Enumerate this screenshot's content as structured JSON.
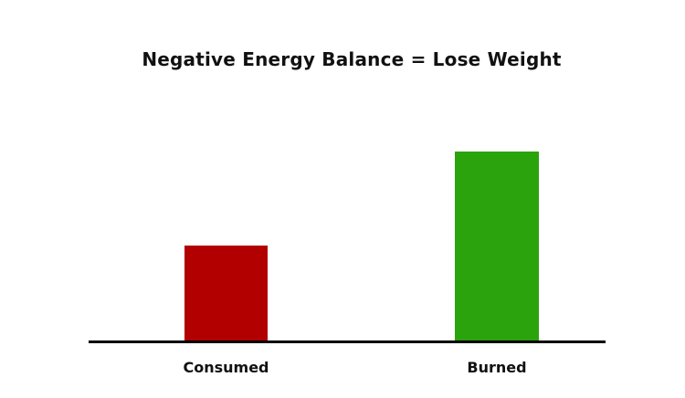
{
  "chart_data": {
    "type": "bar",
    "title": "Negative Energy Balance = Lose Weight",
    "categories": [
      "Consumed",
      "Burned"
    ],
    "values": [
      50,
      100
    ],
    "value_note": "no numeric axis shown; values are relative (Burned bar is ~2x the Consumed bar height)",
    "colors": [
      "#b20000",
      "#2aa30d"
    ],
    "xlabel": "",
    "ylabel": "",
    "legend_position": "none",
    "grid": false,
    "axes": {
      "x_baseline_visible": true,
      "y_axis_visible": false,
      "tick_labels_visible": false,
      "baseline_color": "#000000"
    },
    "background_color": "#ffffff",
    "title_color": "#111111",
    "label_color": "#111111"
  }
}
